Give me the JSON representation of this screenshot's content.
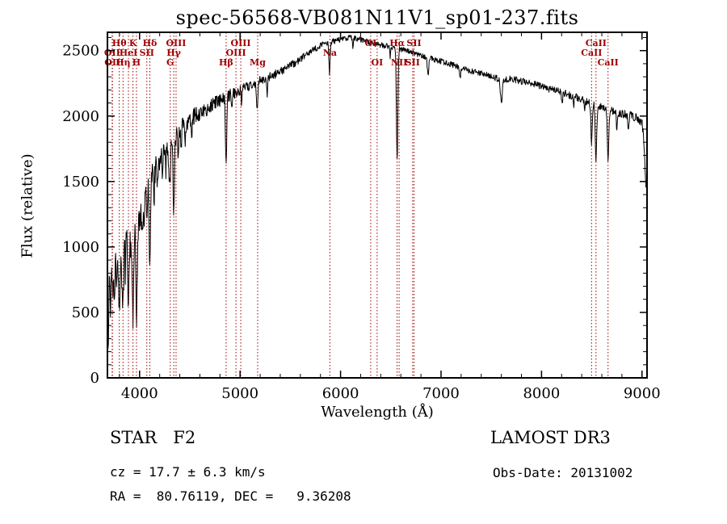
{
  "title": "spec-56568-VB081N11V1_sp01-237.fits",
  "annotations": {
    "class_label": "STAR   F2",
    "survey": "LAMOST DR3",
    "cz": "cz = 17.7 ± 6.3 km/s",
    "obs_date": "Obs-Date: 20131002",
    "radec": "RA =  80.76119, DEC =   9.36208"
  },
  "chart_data": {
    "type": "line",
    "title": "spec-56568-VB081N11V1_sp01-237.fits",
    "xlabel": "Wavelength (Å)",
    "ylabel": "Flux (relative)",
    "xlim": [
      3680,
      9050
    ],
    "ylim": [
      0,
      2640
    ],
    "xticks": [
      4000,
      5000,
      6000,
      7000,
      8000,
      9000
    ],
    "yticks": [
      0,
      500,
      1000,
      1500,
      2000,
      2500
    ],
    "x_minor_step": 200,
    "y_minor_step": 100,
    "grid": false,
    "legend": "none",
    "line_color": "#000000",
    "spectral_line_color": "#a00000",
    "spectral_lines": [
      {
        "label": "OII",
        "wavelength": 3727,
        "row": 2
      },
      {
        "label": "OII",
        "wavelength": 3730,
        "row": 3
      },
      {
        "label": "Hθ",
        "wavelength": 3798,
        "row": 1
      },
      {
        "label": "Hη",
        "wavelength": 3835,
        "row": 3
      },
      {
        "label": "HeI",
        "wavelength": 3889,
        "row": 2
      },
      {
        "label": "K",
        "wavelength": 3934,
        "row": 1
      },
      {
        "label": "H",
        "wavelength": 3969,
        "row": 3
      },
      {
        "label": "SII",
        "wavelength": 4072,
        "row": 2
      },
      {
        "label": "Hδ",
        "wavelength": 4102,
        "row": 1
      },
      {
        "label": "G",
        "wavelength": 4305,
        "row": 3
      },
      {
        "label": "Hγ",
        "wavelength": 4340,
        "row": 2
      },
      {
        "label": "OIII",
        "wavelength": 4363,
        "row": 1
      },
      {
        "label": "Hβ",
        "wavelength": 4861,
        "row": 3
      },
      {
        "label": "OIII",
        "wavelength": 4959,
        "row": 2
      },
      {
        "label": "OIII",
        "wavelength": 5007,
        "row": 1
      },
      {
        "label": "Mg",
        "wavelength": 5175,
        "row": 3
      },
      {
        "label": "Na",
        "wavelength": 5894,
        "row": 2
      },
      {
        "label": "OI",
        "wavelength": 6300,
        "row": 1
      },
      {
        "label": "OI",
        "wavelength": 6364,
        "row": 3
      },
      {
        "label": "Hα",
        "wavelength": 6563,
        "row": 1
      },
      {
        "label": "NII",
        "wavelength": 6583,
        "row": 3
      },
      {
        "label": "SII",
        "wavelength": 6717,
        "row": 3
      },
      {
        "label": "SII",
        "wavelength": 6731,
        "row": 1
      },
      {
        "label": "CaII",
        "wavelength": 8498,
        "row": 2
      },
      {
        "label": "CaII",
        "wavelength": 8542,
        "row": 1
      },
      {
        "label": "CaII",
        "wavelength": 8662,
        "row": 3
      }
    ],
    "spectrum": {
      "x_start": 3686,
      "x_end": 9040,
      "x_step": 4,
      "noise_seed": 12345,
      "continuum": [
        [
          3686,
          80
        ],
        [
          3692,
          430
        ],
        [
          3700,
          770
        ],
        [
          3712,
          830
        ],
        [
          3725,
          865
        ],
        [
          3740,
          900
        ],
        [
          3760,
          930
        ],
        [
          3780,
          950
        ],
        [
          3800,
          970
        ],
        [
          3830,
          1010
        ],
        [
          3860,
          1050
        ],
        [
          3900,
          1090
        ],
        [
          3940,
          1120
        ],
        [
          3970,
          1135
        ],
        [
          4000,
          1190
        ],
        [
          4040,
          1300
        ],
        [
          4080,
          1420
        ],
        [
          4120,
          1530
        ],
        [
          4160,
          1600
        ],
        [
          4200,
          1670
        ],
        [
          4250,
          1720
        ],
        [
          4300,
          1765
        ],
        [
          4350,
          1820
        ],
        [
          4400,
          1890
        ],
        [
          4450,
          1940
        ],
        [
          4500,
          1980
        ],
        [
          4550,
          2005
        ],
        [
          4600,
          2025
        ],
        [
          4650,
          2050
        ],
        [
          4700,
          2075
        ],
        [
          4750,
          2100
        ],
        [
          4800,
          2120
        ],
        [
          4850,
          2140
        ],
        [
          4900,
          2160
        ],
        [
          4950,
          2180
        ],
        [
          5000,
          2200
        ],
        [
          5050,
          2215
        ],
        [
          5100,
          2232
        ],
        [
          5150,
          2250
        ],
        [
          5200,
          2268
        ],
        [
          5250,
          2285
        ],
        [
          5300,
          2302
        ],
        [
          5350,
          2320
        ],
        [
          5400,
          2340
        ],
        [
          5450,
          2362
        ],
        [
          5500,
          2385
        ],
        [
          5550,
          2410
        ],
        [
          5600,
          2435
        ],
        [
          5650,
          2460
        ],
        [
          5700,
          2488
        ],
        [
          5750,
          2515
        ],
        [
          5800,
          2540
        ],
        [
          5850,
          2556
        ],
        [
          5900,
          2566
        ],
        [
          5950,
          2576
        ],
        [
          6000,
          2586
        ],
        [
          6050,
          2595
        ],
        [
          6100,
          2600
        ],
        [
          6150,
          2595
        ],
        [
          6200,
          2586
        ],
        [
          6250,
          2572
        ],
        [
          6300,
          2560
        ],
        [
          6350,
          2550
        ],
        [
          6400,
          2542
        ],
        [
          6450,
          2536
        ],
        [
          6500,
          2530
        ],
        [
          6550,
          2520
        ],
        [
          6600,
          2510
        ],
        [
          6650,
          2500
        ],
        [
          6700,
          2490
        ],
        [
          6750,
          2476
        ],
        [
          6800,
          2462
        ],
        [
          6850,
          2450
        ],
        [
          6900,
          2440
        ],
        [
          6950,
          2430
        ],
        [
          7000,
          2418
        ],
        [
          7050,
          2406
        ],
        [
          7100,
          2394
        ],
        [
          7150,
          2382
        ],
        [
          7200,
          2370
        ],
        [
          7250,
          2356
        ],
        [
          7300,
          2344
        ],
        [
          7350,
          2334
        ],
        [
          7400,
          2324
        ],
        [
          7450,
          2314
        ],
        [
          7500,
          2304
        ],
        [
          7550,
          2290
        ],
        [
          7600,
          2272
        ],
        [
          7650,
          2280
        ],
        [
          7700,
          2286
        ],
        [
          7750,
          2276
        ],
        [
          7800,
          2266
        ],
        [
          7850,
          2256
        ],
        [
          7900,
          2246
        ],
        [
          7950,
          2238
        ],
        [
          8000,
          2230
        ],
        [
          8050,
          2216
        ],
        [
          8100,
          2202
        ],
        [
          8150,
          2194
        ],
        [
          8200,
          2186
        ],
        [
          8250,
          2170
        ],
        [
          8300,
          2156
        ],
        [
          8350,
          2142
        ],
        [
          8400,
          2126
        ],
        [
          8450,
          2110
        ],
        [
          8500,
          2096
        ],
        [
          8550,
          2082
        ],
        [
          8600,
          2066
        ],
        [
          8650,
          2052
        ],
        [
          8700,
          2040
        ],
        [
          8750,
          2030
        ],
        [
          8800,
          2020
        ],
        [
          8850,
          2010
        ],
        [
          8900,
          2000
        ],
        [
          8950,
          1984
        ],
        [
          9000,
          1950
        ],
        [
          9015,
          1845
        ],
        [
          9030,
          1630
        ],
        [
          9040,
          1430
        ]
      ],
      "absorption_lines": [
        [
          3714,
          320,
          5
        ],
        [
          3734,
          380,
          5
        ],
        [
          3750,
          300,
          5
        ],
        [
          3771,
          330,
          5
        ],
        [
          3798,
          430,
          6
        ],
        [
          3820,
          260,
          4
        ],
        [
          3835,
          470,
          6
        ],
        [
          3859,
          220,
          4
        ],
        [
          3889,
          530,
          6
        ],
        [
          3912,
          180,
          4
        ],
        [
          3934,
          720,
          6
        ],
        [
          3969,
          640,
          7
        ],
        [
          4026,
          230,
          4
        ],
        [
          4045,
          200,
          4
        ],
        [
          4072,
          180,
          4
        ],
        [
          4102,
          590,
          6
        ],
        [
          4144,
          190,
          4
        ],
        [
          4178,
          150,
          4
        ],
        [
          4227,
          240,
          4
        ],
        [
          4260,
          160,
          4
        ],
        [
          4300,
          280,
          7
        ],
        [
          4340,
          610,
          6
        ],
        [
          4383,
          240,
          4
        ],
        [
          4415,
          150,
          4
        ],
        [
          4455,
          130,
          4
        ],
        [
          4520,
          110,
          4
        ],
        [
          4668,
          110,
          4
        ],
        [
          4861,
          560,
          6
        ],
        [
          4920,
          130,
          4
        ],
        [
          5015,
          100,
          4
        ],
        [
          5170,
          210,
          6
        ],
        [
          5270,
          130,
          5
        ],
        [
          5890,
          235,
          6
        ],
        [
          6122,
          80,
          4
        ],
        [
          6494,
          90,
          4
        ],
        [
          6563,
          860,
          7
        ],
        [
          6870,
          130,
          7
        ],
        [
          7190,
          80,
          6
        ],
        [
          7600,
          170,
          9
        ],
        [
          8205,
          90,
          5
        ],
        [
          8320,
          80,
          4
        ],
        [
          8430,
          100,
          4
        ],
        [
          8498,
          310,
          6
        ],
        [
          8542,
          415,
          7
        ],
        [
          8662,
          395,
          7
        ],
        [
          8750,
          140,
          5
        ],
        [
          8865,
          120,
          5
        ]
      ],
      "noise_amplitude": [
        [
          3686,
          150
        ],
        [
          3800,
          135
        ],
        [
          3950,
          120
        ],
        [
          4100,
          100
        ],
        [
          4300,
          85
        ],
        [
          4500,
          65
        ],
        [
          4700,
          55
        ],
        [
          5000,
          42
        ],
        [
          5300,
          34
        ],
        [
          5600,
          28
        ],
        [
          6000,
          22
        ],
        [
          6500,
          20
        ],
        [
          7000,
          22
        ],
        [
          7500,
          24
        ],
        [
          8000,
          27
        ],
        [
          8500,
          30
        ],
        [
          9040,
          34
        ]
      ]
    }
  }
}
